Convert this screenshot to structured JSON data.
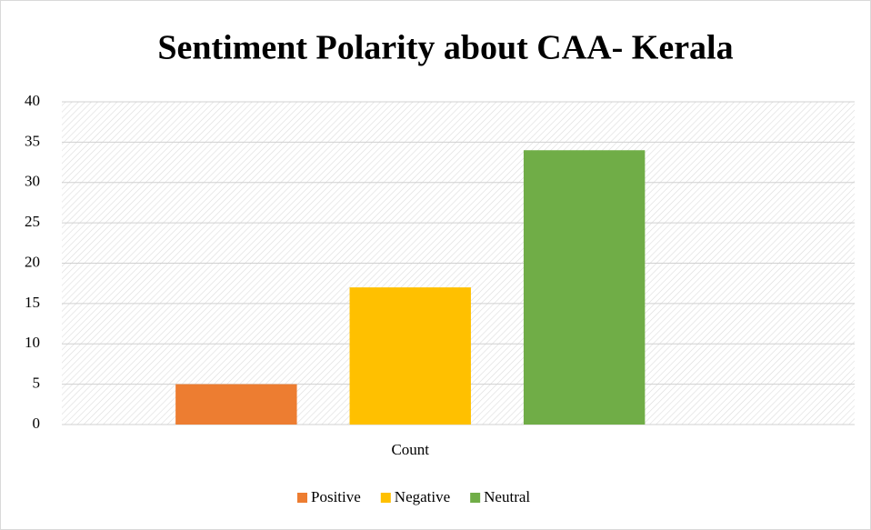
{
  "chart_data": {
    "type": "bar",
    "title": "Sentiment Polarity about CAA- Kerala",
    "categories": [
      "Count"
    ],
    "series": [
      {
        "name": "Positive",
        "color": "#ed7d31",
        "values": [
          5
        ]
      },
      {
        "name": "Negative",
        "color": "#ffc000",
        "values": [
          17
        ]
      },
      {
        "name": "Neutral",
        "color": "#70ad47",
        "values": [
          34
        ]
      }
    ],
    "ylim": [
      0,
      40
    ],
    "yticks": [
      0,
      5,
      10,
      15,
      20,
      25,
      30,
      35,
      40
    ],
    "grid": true,
    "legend": "bottom"
  }
}
